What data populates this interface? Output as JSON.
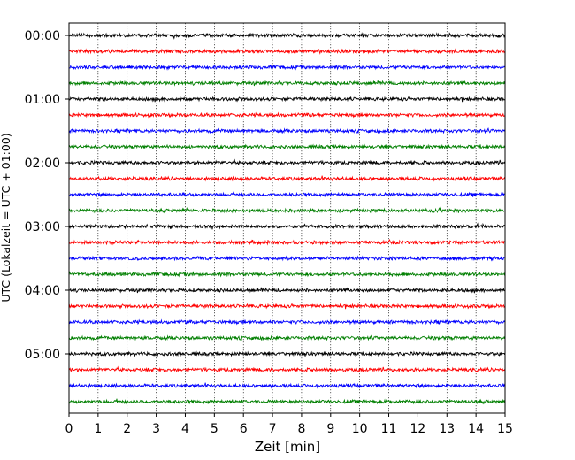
{
  "chart_data": {
    "type": "line",
    "title": "",
    "xlabel": "Zeit  [min]",
    "ylabel": "UTC (Lokalzeit = UTC + 01:00)",
    "xlim": [
      0,
      15
    ],
    "x_ticks": [
      "0",
      "1",
      "2",
      "3",
      "4",
      "5",
      "6",
      "7",
      "8",
      "9",
      "10",
      "11",
      "12",
      "13",
      "14",
      "15"
    ],
    "y_tick_labels": [
      "00:00",
      "01:00",
      "02:00",
      "03:00",
      "04:00",
      "05:00"
    ],
    "trace_interval_minutes": 15,
    "trace_start_times": [
      "00:00",
      "00:15",
      "00:30",
      "00:45",
      "01:00",
      "01:15",
      "01:30",
      "01:45",
      "02:00",
      "02:15",
      "02:30",
      "02:45",
      "03:00",
      "03:15",
      "03:30",
      "03:45",
      "04:00",
      "04:15",
      "04:30",
      "04:45",
      "05:00",
      "05:15",
      "05:30",
      "05:45"
    ],
    "trace_color_cycle": [
      "#000000",
      "#ff0000",
      "#0000ff",
      "#007f00"
    ],
    "vertical_grid": "dotted",
    "legend": "none"
  }
}
